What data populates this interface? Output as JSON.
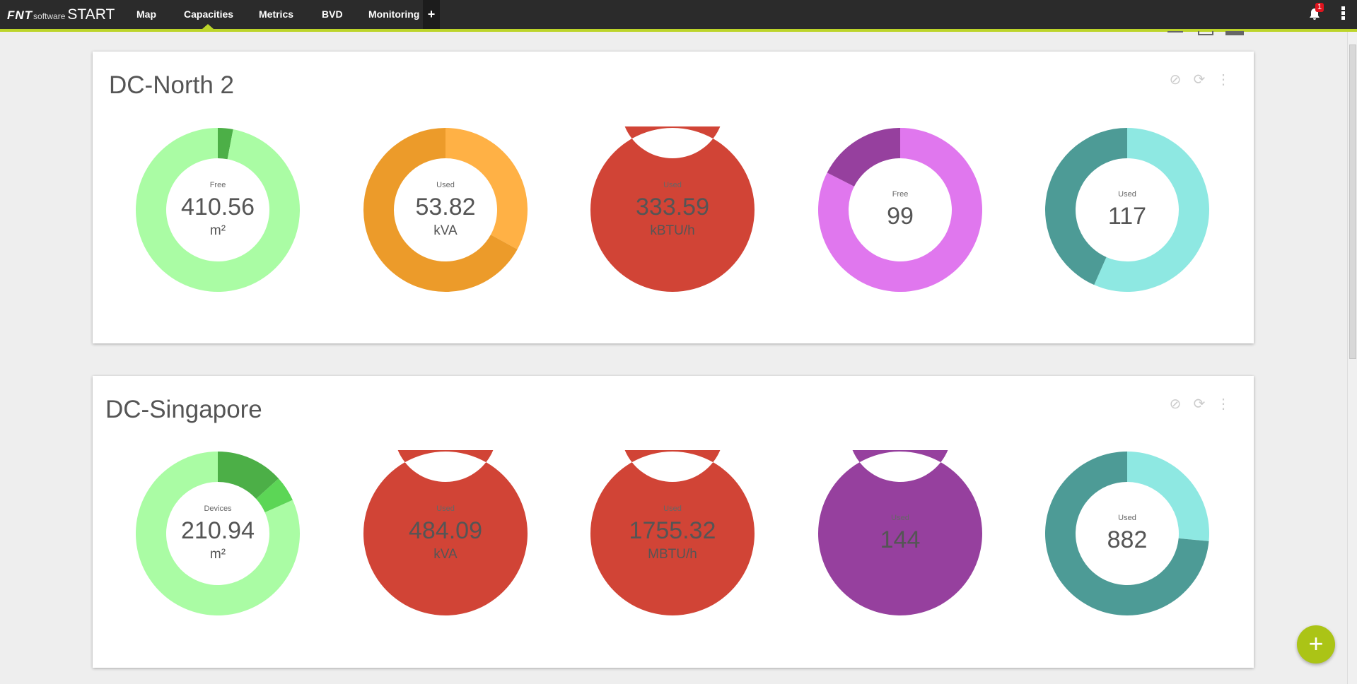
{
  "nav": {
    "logo_fnt": "FNT",
    "logo_software": "software",
    "logo_start": "START",
    "items": [
      "Map",
      "Capacities",
      "Metrics",
      "BVD",
      "Monitoring"
    ],
    "active": "Capacities",
    "add_tab": "+",
    "notifications": "1"
  },
  "fab_label": "+",
  "colors": {
    "accent": "#bcd42a",
    "fab": "#abc416"
  },
  "cards": [
    {
      "title": "DC-North 2",
      "icons": {
        "disable": "⊘",
        "refresh": "⟳",
        "menu": "⋮"
      }
    },
    {
      "title": "DC-Singapore",
      "icons": {
        "disable": "⊘",
        "refresh": "⟳",
        "menu": "⋮"
      }
    }
  ],
  "chart_data": [
    {
      "type": "pie",
      "card": "DC-North 2",
      "label": "Free",
      "value": "410.56",
      "unit": "m²",
      "slices": [
        {
          "name": "used",
          "fraction": 0.03,
          "color": "#4caf47"
        },
        {
          "name": "free",
          "fraction": 0.97,
          "color": "#aafca4"
        }
      ]
    },
    {
      "type": "pie",
      "card": "DC-North 2",
      "label": "Used",
      "value": "53.82",
      "unit": "kVA",
      "slices": [
        {
          "name": "free",
          "fraction": 0.33,
          "color": "#ffb145"
        },
        {
          "name": "used",
          "fraction": 0.67,
          "color": "#ec9b2a"
        }
      ]
    },
    {
      "type": "pie",
      "card": "DC-North 2",
      "label": "Used",
      "value": "333.59",
      "unit": "kBTU/h",
      "slices": [
        {
          "name": "used",
          "fraction": 1.0,
          "color": "#d14436"
        }
      ]
    },
    {
      "type": "pie",
      "card": "DC-North 2",
      "label": "Free",
      "value": "99",
      "unit": "",
      "slices": [
        {
          "name": "free",
          "fraction": 0.825,
          "color": "#e077ee"
        },
        {
          "name": "used",
          "fraction": 0.175,
          "color": "#96409e"
        }
      ]
    },
    {
      "type": "pie",
      "card": "DC-North 2",
      "label": "Used",
      "value": "117",
      "unit": "",
      "slices": [
        {
          "name": "free",
          "fraction": 0.566,
          "color": "#8ee8e2"
        },
        {
          "name": "used",
          "fraction": 0.434,
          "color": "#4d9b96"
        }
      ]
    },
    {
      "type": "pie",
      "card": "DC-Singapore",
      "label": "Devices",
      "value": "210.94",
      "unit": "m²",
      "slices": [
        {
          "name": "devices",
          "fraction": 0.133,
          "color": "#4caf47"
        },
        {
          "name": "other",
          "fraction": 0.05,
          "color": "#5cd656"
        },
        {
          "name": "free",
          "fraction": 0.817,
          "color": "#aafca4"
        }
      ]
    },
    {
      "type": "pie",
      "card": "DC-Singapore",
      "label": "Used",
      "value": "484.09",
      "unit": "kVA",
      "slices": [
        {
          "name": "used",
          "fraction": 1.0,
          "color": "#d14436"
        }
      ]
    },
    {
      "type": "pie",
      "card": "DC-Singapore",
      "label": "Used",
      "value": "1755.32",
      "unit": "MBTU/h",
      "slices": [
        {
          "name": "used",
          "fraction": 1.0,
          "color": "#d14436"
        }
      ]
    },
    {
      "type": "pie",
      "card": "DC-Singapore",
      "label": "Used",
      "value": "144",
      "unit": "",
      "slices": [
        {
          "name": "used",
          "fraction": 1.0,
          "color": "#96409e"
        }
      ]
    },
    {
      "type": "pie",
      "card": "DC-Singapore",
      "label": "Used",
      "value": "882",
      "unit": "",
      "slices": [
        {
          "name": "free",
          "fraction": 0.265,
          "color": "#8ee8e2"
        },
        {
          "name": "used",
          "fraction": 0.735,
          "color": "#4d9b96"
        }
      ]
    }
  ]
}
